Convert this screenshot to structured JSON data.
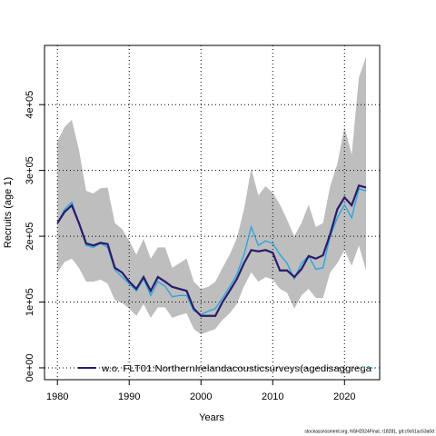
{
  "chart_data": {
    "type": "line",
    "x_label": "Years",
    "y_label": "Recruits (age 1)",
    "footer": "stockassessment.org, NSH2024Final, r18281, git:c9c61ac53a0d",
    "x": [
      1980,
      1981,
      1982,
      1983,
      1984,
      1985,
      1986,
      1987,
      1988,
      1989,
      1990,
      1991,
      1992,
      1993,
      1994,
      1995,
      1996,
      1997,
      1998,
      1999,
      2000,
      2001,
      2002,
      2003,
      2004,
      2005,
      2006,
      2007,
      2008,
      2009,
      2010,
      2011,
      2012,
      2013,
      2014,
      2015,
      2016,
      2017,
      2018,
      2019,
      2020,
      2021,
      2022,
      2023
    ],
    "xlim": [
      1978.2,
      2024.9
    ],
    "xticks": [
      1980,
      1990,
      2000,
      2010,
      2020
    ],
    "ylim": [
      -18000,
      490000
    ],
    "yticks": [
      {
        "value": 0,
        "label": "0e+00"
      },
      {
        "value": 100000,
        "label": "1e+05"
      },
      {
        "value": 200000,
        "label": "2e+05"
      },
      {
        "value": 300000,
        "label": "3e+05"
      },
      {
        "value": 400000,
        "label": "4e+05"
      }
    ],
    "grid": true,
    "band": {
      "color": "#bebebe",
      "upper": [
        345000,
        366000,
        377000,
        331000,
        269000,
        265000,
        273000,
        274000,
        220000,
        211000,
        193000,
        172000,
        196000,
        166000,
        183000,
        183000,
        152000,
        159000,
        166000,
        131000,
        120000,
        123000,
        131000,
        152000,
        172000,
        197000,
        241000,
        303000,
        262000,
        276000,
        266000,
        248000,
        225000,
        200000,
        220000,
        248000,
        214000,
        220000,
        276000,
        310000,
        366000,
        324000,
        441000,
        473000
      ],
      "lower": [
        145000,
        161000,
        166000,
        152000,
        131000,
        131000,
        134000,
        128000,
        103000,
        99000,
        90000,
        79000,
        97000,
        76000,
        92000,
        92000,
        76000,
        80000,
        83000,
        59000,
        51000,
        55000,
        59000,
        73000,
        83000,
        97000,
        124000,
        145000,
        131000,
        138000,
        134000,
        120000,
        114000,
        90000,
        110000,
        120000,
        106000,
        106000,
        145000,
        159000,
        179000,
        155000,
        186000,
        148000
      ]
    },
    "series": [
      {
        "color": "#2b1a6b",
        "values": [
          220000,
          237000,
          247000,
          220000,
          189000,
          186000,
          190000,
          188000,
          152000,
          145000,
          131000,
          120000,
          138000,
          117000,
          138000,
          131000,
          123000,
          120000,
          117000,
          90000,
          79000,
          79000,
          79000,
          100000,
          117000,
          135000,
          159000,
          179000,
          177000,
          179000,
          175000,
          148000,
          148000,
          138000,
          150000,
          170000,
          166000,
          171000,
          203000,
          241000,
          259000,
          247000,
          277000,
          274000
        ]
      },
      {
        "name": "w.o. FLT01:NorthernIrelandacousticsurveys(agedisaggrega",
        "color": "#29a8e0",
        "values": [
          220000,
          241000,
          252000,
          220000,
          186000,
          183000,
          189000,
          183000,
          149000,
          138000,
          128000,
          117000,
          135000,
          110000,
          131000,
          124000,
          108000,
          110000,
          110000,
          87000,
          81000,
          86000,
          90000,
          106000,
          123000,
          142000,
          172000,
          214000,
          186000,
          193000,
          189000,
          172000,
          159000,
          135000,
          159000,
          170000,
          150000,
          152000,
          200000,
          228000,
          248000,
          228000,
          272000,
          269000
        ]
      }
    ]
  }
}
